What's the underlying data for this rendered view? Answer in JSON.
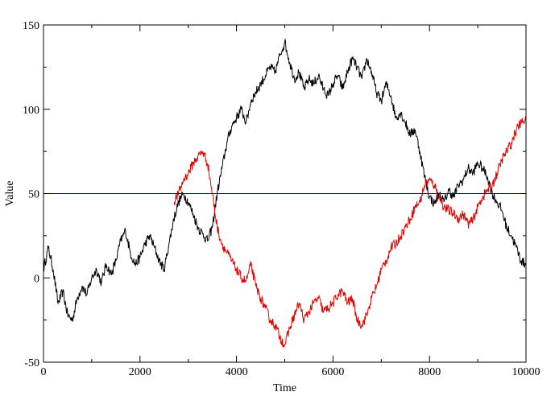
{
  "chart_data": {
    "type": "line",
    "title": "",
    "xlabel": "Time",
    "ylabel": "Value",
    "xlim": [
      0,
      10000
    ],
    "ylim": [
      -50,
      150
    ],
    "xticks": [
      0,
      2000,
      4000,
      6000,
      8000,
      10000
    ],
    "yticks": [
      -50,
      0,
      50,
      100,
      150
    ],
    "x_tick_labels": [
      "0",
      "2000",
      "4000",
      "6000",
      "8000",
      "10000"
    ],
    "y_tick_labels": [
      "-50",
      "0",
      "50",
      "100",
      "150"
    ],
    "grid": false,
    "legend": "none",
    "series": [
      {
        "color": "#000000",
        "x": [
          0,
          100,
          200,
          300,
          400,
          500,
          600,
          700,
          800,
          900,
          1000,
          1100,
          1200,
          1300,
          1400,
          1500,
          1600,
          1700,
          1800,
          1900,
          2000,
          2100,
          2200,
          2300,
          2400,
          2500,
          2600,
          2700,
          2800,
          2900,
          3000,
          3100,
          3200,
          3300,
          3400,
          3500,
          3600,
          3700,
          3800,
          3900,
          4000,
          4100,
          4200,
          4300,
          4400,
          4500,
          4600,
          4700,
          4800,
          4900,
          5000,
          5100,
          5200,
          5300,
          5400,
          5500,
          5600,
          5700,
          5800,
          5900,
          6000,
          6100,
          6200,
          6300,
          6400,
          6500,
          6600,
          6700,
          6800,
          6900,
          7000,
          7100,
          7200,
          7300,
          7400,
          7500,
          7600,
          7700,
          7800,
          7900,
          8000,
          8100,
          8200,
          8300,
          8400,
          8500,
          8600,
          8700,
          8800,
          8900,
          9000,
          9100,
          9200,
          9300,
          9400,
          9500,
          9600,
          9700,
          9800,
          9900,
          10000
        ],
        "y": [
          5,
          18,
          5,
          -15,
          -8,
          -22,
          -25,
          -12,
          -5,
          -10,
          0,
          5,
          -3,
          8,
          2,
          10,
          22,
          28,
          15,
          8,
          12,
          20,
          25,
          18,
          10,
          5,
          20,
          35,
          45,
          50,
          45,
          38,
          30,
          26,
          22,
          30,
          50,
          65,
          80,
          90,
          95,
          100,
          92,
          105,
          110,
          115,
          120,
          125,
          122,
          132,
          140,
          128,
          118,
          122,
          112,
          118,
          115,
          120,
          112,
          108,
          115,
          120,
          112,
          122,
          130,
          125,
          118,
          130,
          122,
          110,
          105,
          115,
          108,
          95,
          98,
          92,
          85,
          88,
          75,
          60,
          48,
          44,
          50,
          45,
          52,
          48,
          55,
          58,
          65,
          62,
          68,
          65,
          60,
          50,
          45,
          40,
          30,
          25,
          18,
          10,
          8
        ]
      },
      {
        "color": "#e00000",
        "x": [
          2700,
          2800,
          2900,
          3000,
          3100,
          3200,
          3300,
          3400,
          3500,
          3600,
          3700,
          3800,
          3900,
          4000,
          4100,
          4200,
          4300,
          4400,
          4500,
          4600,
          4700,
          4800,
          4900,
          5000,
          5100,
          5200,
          5300,
          5400,
          5500,
          5600,
          5700,
          5800,
          5900,
          6000,
          6100,
          6200,
          6300,
          6400,
          6500,
          6600,
          6700,
          6800,
          6900,
          7000,
          7100,
          7200,
          7300,
          7400,
          7500,
          7600,
          7700,
          7800,
          7900,
          8000,
          8100,
          8200,
          8300,
          8400,
          8500,
          8600,
          8700,
          8800,
          8900,
          9000,
          9100,
          9200,
          9300,
          9400,
          9500,
          9600,
          9700,
          9800,
          9900,
          10000
        ],
        "y": [
          45,
          50,
          58,
          62,
          68,
          72,
          75,
          68,
          50,
          30,
          20,
          15,
          10,
          5,
          0,
          -2,
          8,
          -5,
          -12,
          -18,
          -25,
          -28,
          -35,
          -40,
          -30,
          -22,
          -15,
          -25,
          -20,
          -15,
          -12,
          -20,
          -18,
          -15,
          -10,
          -8,
          -15,
          -12,
          -25,
          -28,
          -22,
          -12,
          -5,
          5,
          10,
          18,
          20,
          25,
          30,
          35,
          42,
          45,
          55,
          58,
          55,
          48,
          42,
          40,
          38,
          35,
          38,
          32,
          34,
          42,
          48,
          52,
          55,
          62,
          70,
          75,
          80,
          88,
          92,
          95
        ]
      },
      {
        "color": "#0000cc",
        "x": [
          0,
          10000
        ],
        "y": [
          50,
          50
        ]
      }
    ]
  }
}
